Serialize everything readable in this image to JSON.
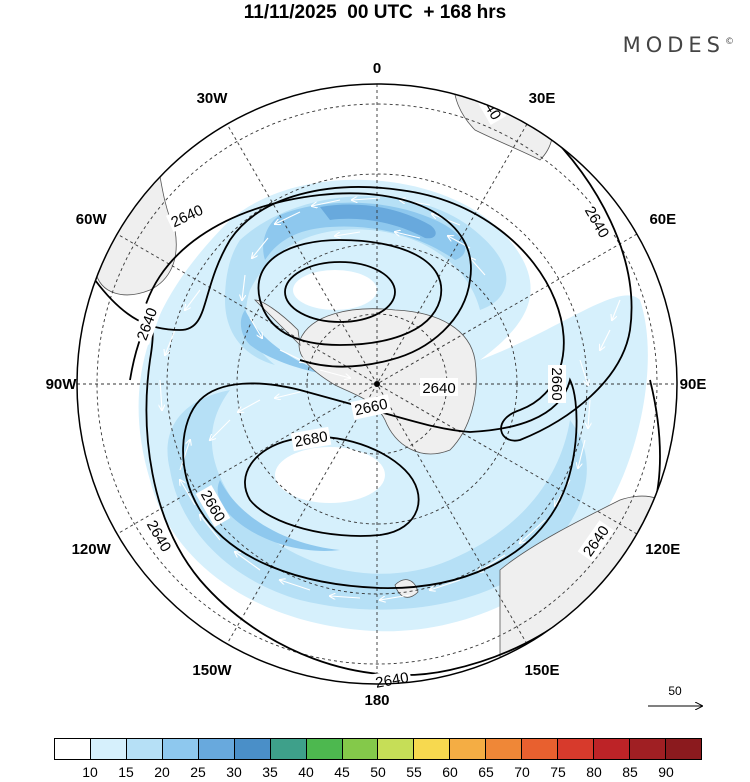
{
  "title": "11/11/2025  00 UTC  + 168 hrs",
  "brand": "MODES",
  "brand_mark": "©",
  "longitudes": [
    {
      "label": "0",
      "deg": 0
    },
    {
      "label": "30E",
      "deg": 30
    },
    {
      "label": "60E",
      "deg": 60
    },
    {
      "label": "90E",
      "deg": 90
    },
    {
      "label": "120E",
      "deg": 120
    },
    {
      "label": "150E",
      "deg": 150
    },
    {
      "label": "180",
      "deg": 180
    },
    {
      "label": "150W",
      "deg": 210
    },
    {
      "label": "120W",
      "deg": 240
    },
    {
      "label": "90W",
      "deg": 270
    },
    {
      "label": "60W",
      "deg": 300
    },
    {
      "label": "30W",
      "deg": 330
    }
  ],
  "contour_labels": [
    "2640",
    "2640",
    "2640",
    "2640",
    "2640",
    "2640",
    "2640",
    "2660",
    "2660",
    "2660",
    "2680"
  ],
  "reference_vector": {
    "label": "50",
    "value": 50
  },
  "colorbar": {
    "labels": [
      "10",
      "15",
      "20",
      "25",
      "30",
      "35",
      "40",
      "45",
      "50",
      "55",
      "60",
      "65",
      "70",
      "75",
      "80",
      "85",
      "90"
    ],
    "colors": [
      "#ffffff",
      "#d6f0fc",
      "#b6e0f6",
      "#8ec8ee",
      "#68a9dd",
      "#4a8fc8",
      "#3ea08a",
      "#4db84f",
      "#84c94a",
      "#c6de57",
      "#f7d94f",
      "#f4ad44",
      "#ef8737",
      "#e8602f",
      "#d73a2c",
      "#bd2327",
      "#a01f23",
      "#8b1a1e"
    ]
  },
  "colors": {
    "land": "#efefef",
    "coast": "#555555",
    "contour": "#000000",
    "grid": "#333333"
  }
}
